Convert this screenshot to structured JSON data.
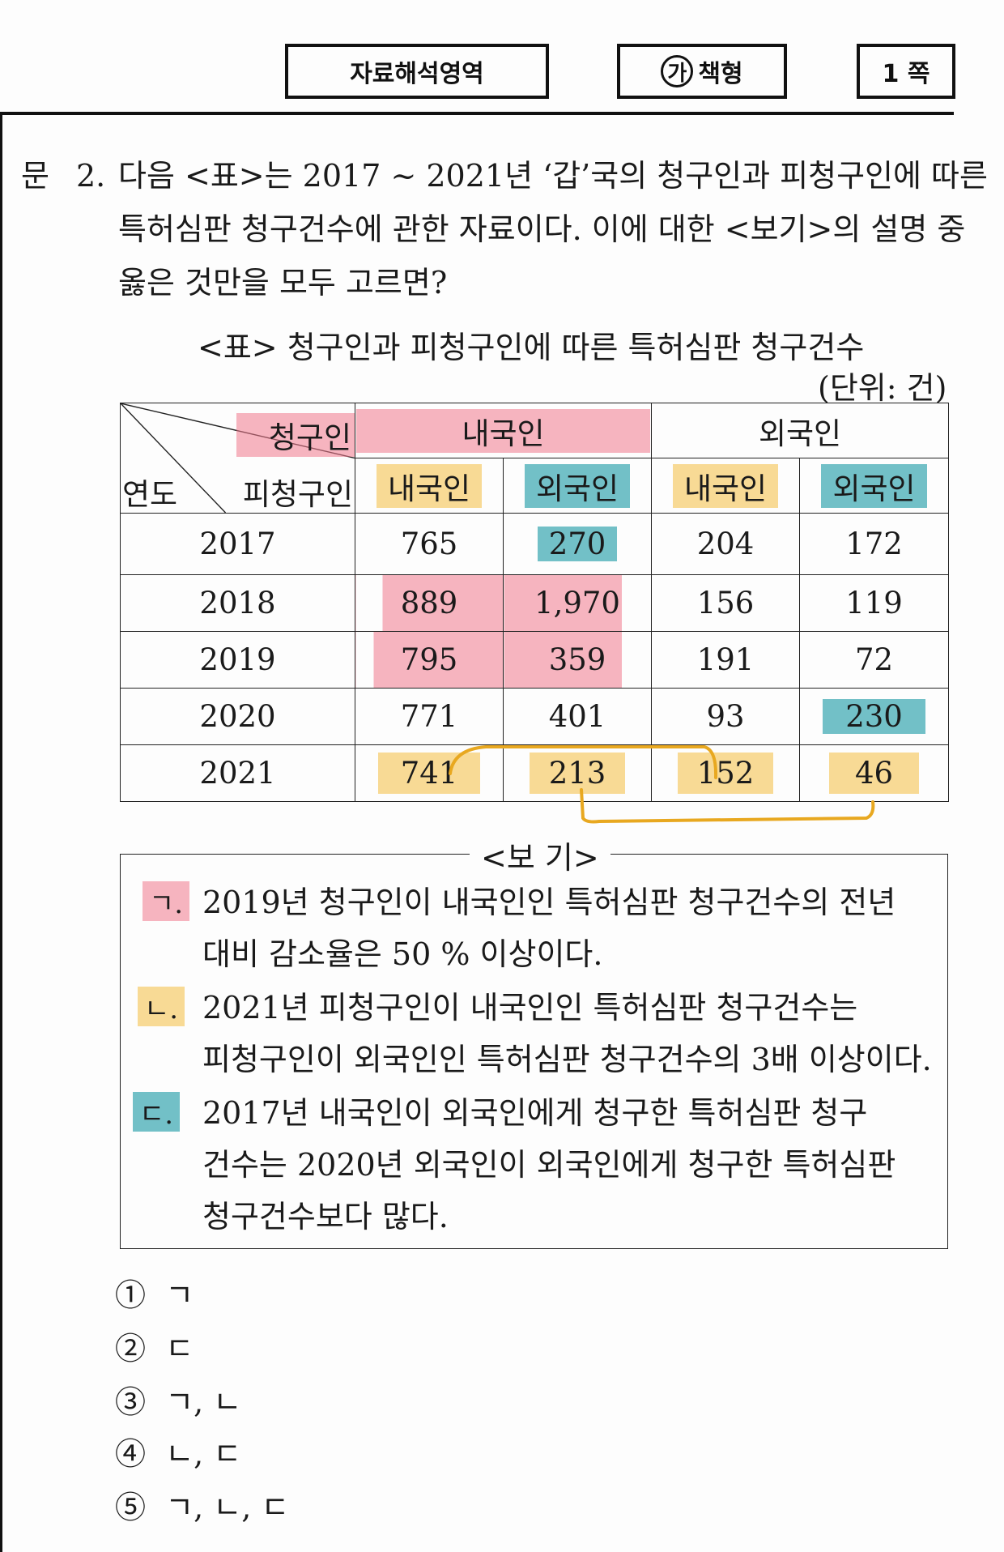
{
  "header": {
    "subject": "자료해석영역",
    "booklet_mark": "가",
    "booklet_text": "책형",
    "page": "1 쪽"
  },
  "question": {
    "label": "문",
    "number": "2.",
    "line1": "다음 <표>는 2017 ~ 2021년 ‘갑’국의 청구인과 피청구인에 따른",
    "line2": "특허심판 청구건수에 관한 자료이다. 이에 대한 <보기>의 설명 중",
    "line3": "옳은 것만을 모두 고르면?"
  },
  "table": {
    "title": "<표> 청구인과 피청구인에 따른 특허심판 청구건수",
    "unit": "(단위: 건)",
    "corner": {
      "top": "청구인",
      "middle": "피청구인",
      "bottom": "연도"
    },
    "claimant_headers": [
      "내국인",
      "외국인"
    ],
    "respondent_headers": [
      "내국인",
      "외국인",
      "내국인",
      "외국인"
    ],
    "rows": [
      {
        "year": "2017",
        "values": [
          "765",
          "270",
          "204",
          "172"
        ]
      },
      {
        "year": "2018",
        "values": [
          "889",
          "1,970",
          "156",
          "119"
        ]
      },
      {
        "year": "2019",
        "values": [
          "795",
          "359",
          "191",
          "72"
        ]
      },
      {
        "year": "2020",
        "values": [
          "771",
          "401",
          "93",
          "230"
        ]
      },
      {
        "year": "2021",
        "values": [
          "741",
          "213",
          "152",
          "46"
        ]
      }
    ]
  },
  "bogi": {
    "title": "<보  기>",
    "items": [
      {
        "mark": "ㄱ.",
        "line1": "2019년 청구인이 내국인인 특허심판 청구건수의 전년",
        "line2": "대비 감소율은 50 % 이상이다.",
        "line3": ""
      },
      {
        "mark": "ㄴ.",
        "line1": "2021년 피청구인이 내국인인 특허심판 청구건수는",
        "line2": "피청구인이 외국인인 특허심판 청구건수의 3배 이상이다.",
        "line3": ""
      },
      {
        "mark": "ㄷ.",
        "line1": "2017년 내국인이 외국인에게 청구한 특허심판 청구",
        "line2": "건수는 2020년 외국인이 외국인에게 청구한 특허심판",
        "line3": "청구건수보다 많다."
      }
    ]
  },
  "choices": [
    {
      "num": "①",
      "text": "ㄱ"
    },
    {
      "num": "②",
      "text": "ㄷ"
    },
    {
      "num": "③",
      "text": "ㄱ, ㄴ"
    },
    {
      "num": "④",
      "text": "ㄴ, ㄷ"
    },
    {
      "num": "⑤",
      "text": "ㄱ, ㄴ, ㄷ"
    }
  ],
  "highlight_colors": {
    "pink": "#f0788c",
    "yellow": "#f5c350",
    "teal": "#28a0aa",
    "pen": "#e8a820"
  }
}
